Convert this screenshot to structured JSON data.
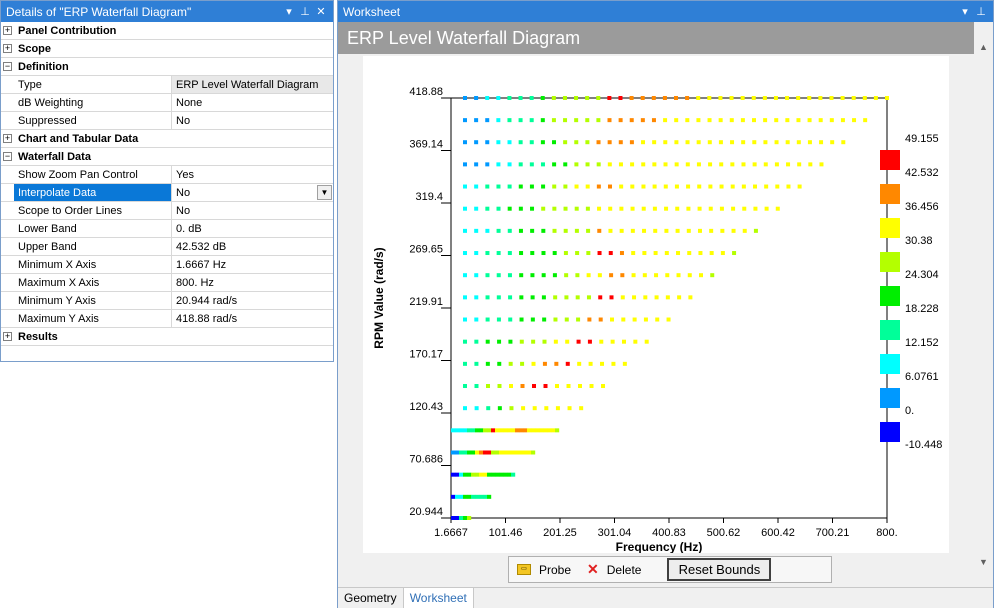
{
  "details": {
    "title": "Details of \"ERP Waterfall Diagram\"",
    "sections": [
      {
        "label": "Panel Contribution",
        "expanded": false,
        "rows": []
      },
      {
        "label": "Scope",
        "expanded": false,
        "rows": []
      },
      {
        "label": "Definition",
        "expanded": true,
        "rows": [
          {
            "name": "Type",
            "value": "ERP Level Waterfall Diagram",
            "readonly": true
          },
          {
            "name": "dB Weighting",
            "value": "None"
          },
          {
            "name": "Suppressed",
            "value": "No"
          }
        ]
      },
      {
        "label": "Chart and Tabular Data",
        "expanded": false,
        "rows": []
      },
      {
        "label": "Waterfall Data",
        "expanded": true,
        "rows": [
          {
            "name": "Show Zoom Pan Control",
            "value": "Yes"
          },
          {
            "name": "Interpolate Data",
            "value": "No",
            "selected": true,
            "dropdown": true
          },
          {
            "name": "Scope to Order Lines",
            "value": "No"
          },
          {
            "name": "Lower Band",
            "value": "0. dB"
          },
          {
            "name": "Upper Band",
            "value": "42.532 dB"
          },
          {
            "name": "Minimum X Axis",
            "value": "1.6667 Hz"
          },
          {
            "name": "Maximum X Axis",
            "value": "800. Hz"
          },
          {
            "name": "Minimum Y Axis",
            "value": "20.944 rad/s"
          },
          {
            "name": "Maximum Y Axis",
            "value": "418.88 rad/s"
          }
        ]
      },
      {
        "label": "Results",
        "expanded": false,
        "rows": []
      }
    ]
  },
  "worksheet": {
    "title": "Worksheet",
    "header": "ERP Level Waterfall Diagram",
    "toolbar": {
      "probe": "Probe",
      "delete": "Delete",
      "reset": "Reset Bounds"
    },
    "tabs": [
      "Geometry",
      "Worksheet"
    ],
    "active_tab": "Worksheet"
  },
  "chart_data": {
    "type": "heatmap",
    "xlabel": "Frequency (Hz)",
    "ylabel": "RPM Value (rad/s)",
    "xlim": [
      1.6667,
      800
    ],
    "ylim": [
      20.944,
      418.88
    ],
    "x_ticks": [
      "1.6667",
      "101.46",
      "201.25",
      "301.04",
      "400.83",
      "500.62",
      "600.42",
      "700.21",
      "800."
    ],
    "y_ticks": [
      "418.88",
      "369.14",
      "319.4",
      "269.65",
      "219.91",
      "170.17",
      "120.43",
      "70.686",
      "20.944"
    ],
    "legend": {
      "placement": "right",
      "values": [
        "49.155",
        "42.532",
        "36.456",
        "30.38",
        "24.304",
        "18.228",
        "12.152",
        "6.0761",
        "0.",
        "-10.448"
      ],
      "colors": [
        "#ff0000",
        "#ff8800",
        "#ffff00",
        "#b4ff00",
        "#00ee00",
        "#00ff99",
        "#00ffff",
        "#0099ff",
        "#0000ff"
      ]
    },
    "rows": [
      {
        "rpm": 418.88,
        "max_freq": 800,
        "profile": [
          [
            0,
            1
          ],
          [
            0.05,
            2
          ],
          [
            0.1,
            3
          ],
          [
            0.16,
            4
          ],
          [
            0.2,
            5
          ],
          [
            0.32,
            8
          ],
          [
            0.38,
            7
          ],
          [
            0.55,
            6
          ],
          [
            1,
            6
          ]
        ]
      },
      {
        "rpm": 397.9,
        "max_freq": 760,
        "profile": [
          [
            0,
            1
          ],
          [
            0.06,
            2
          ],
          [
            0.1,
            3
          ],
          [
            0.18,
            4
          ],
          [
            0.22,
            5
          ],
          [
            0.36,
            7
          ],
          [
            0.5,
            6
          ],
          [
            1,
            6
          ]
        ]
      },
      {
        "rpm": 377,
        "max_freq": 720,
        "profile": [
          [
            0,
            1
          ],
          [
            0.07,
            2
          ],
          [
            0.12,
            3
          ],
          [
            0.2,
            4
          ],
          [
            0.26,
            5
          ],
          [
            0.35,
            7
          ],
          [
            0.45,
            6
          ],
          [
            1,
            6
          ]
        ]
      },
      {
        "rpm": 356,
        "max_freq": 680,
        "profile": [
          [
            0,
            1
          ],
          [
            0.08,
            2
          ],
          [
            0.14,
            3
          ],
          [
            0.22,
            4
          ],
          [
            0.3,
            5
          ],
          [
            0.4,
            6
          ],
          [
            1,
            6
          ]
        ]
      },
      {
        "rpm": 335,
        "max_freq": 640,
        "profile": [
          [
            0,
            2
          ],
          [
            0.06,
            3
          ],
          [
            0.16,
            4
          ],
          [
            0.26,
            5
          ],
          [
            0.33,
            6
          ],
          [
            0.4,
            7
          ],
          [
            0.45,
            6
          ],
          [
            1,
            6
          ]
        ]
      },
      {
        "rpm": 314,
        "max_freq": 600,
        "profile": [
          [
            0,
            2
          ],
          [
            0.07,
            3
          ],
          [
            0.14,
            4
          ],
          [
            0.25,
            5
          ],
          [
            0.4,
            6
          ],
          [
            1,
            6
          ]
        ]
      },
      {
        "rpm": 293,
        "max_freq": 560,
        "profile": [
          [
            0,
            2
          ],
          [
            0.08,
            3
          ],
          [
            0.16,
            4
          ],
          [
            0.3,
            5
          ],
          [
            0.44,
            7
          ],
          [
            0.5,
            6
          ],
          [
            1,
            5
          ]
        ]
      },
      {
        "rpm": 272,
        "max_freq": 520,
        "profile": [
          [
            0,
            2
          ],
          [
            0.08,
            3
          ],
          [
            0.2,
            4
          ],
          [
            0.36,
            5
          ],
          [
            0.5,
            8
          ],
          [
            0.56,
            7
          ],
          [
            0.62,
            6
          ],
          [
            1,
            5
          ]
        ]
      },
      {
        "rpm": 251,
        "max_freq": 480,
        "profile": [
          [
            0,
            2
          ],
          [
            0.09,
            3
          ],
          [
            0.22,
            4
          ],
          [
            0.38,
            5
          ],
          [
            0.5,
            6
          ],
          [
            0.58,
            7
          ],
          [
            0.64,
            6
          ],
          [
            1,
            5
          ]
        ]
      },
      {
        "rpm": 230,
        "max_freq": 440,
        "profile": [
          [
            0,
            2
          ],
          [
            0.1,
            3
          ],
          [
            0.24,
            4
          ],
          [
            0.4,
            5
          ],
          [
            0.6,
            8
          ],
          [
            0.66,
            6
          ],
          [
            1,
            6
          ]
        ]
      },
      {
        "rpm": 209,
        "max_freq": 400,
        "profile": [
          [
            0,
            2
          ],
          [
            0.1,
            3
          ],
          [
            0.26,
            4
          ],
          [
            0.42,
            5
          ],
          [
            0.6,
            7
          ],
          [
            0.7,
            6
          ],
          [
            1,
            6
          ]
        ]
      },
      {
        "rpm": 188,
        "max_freq": 360,
        "profile": [
          [
            0,
            3
          ],
          [
            0.1,
            4
          ],
          [
            0.3,
            5
          ],
          [
            0.5,
            6
          ],
          [
            0.6,
            8
          ],
          [
            0.7,
            6
          ],
          [
            1,
            6
          ]
        ]
      },
      {
        "rpm": 167,
        "max_freq": 320,
        "profile": [
          [
            0,
            3
          ],
          [
            0.12,
            4
          ],
          [
            0.26,
            5
          ],
          [
            0.38,
            6
          ],
          [
            0.5,
            7
          ],
          [
            0.6,
            8
          ],
          [
            0.7,
            6
          ],
          [
            1,
            6
          ]
        ]
      },
      {
        "rpm": 146,
        "max_freq": 280,
        "profile": [
          [
            0,
            3
          ],
          [
            0.14,
            5
          ],
          [
            0.3,
            6
          ],
          [
            0.4,
            7
          ],
          [
            0.5,
            8
          ],
          [
            0.65,
            6
          ],
          [
            1,
            6
          ]
        ]
      },
      {
        "rpm": 125,
        "max_freq": 240,
        "profile": [
          [
            0,
            2
          ],
          [
            0.16,
            3
          ],
          [
            0.3,
            4
          ],
          [
            0.4,
            5
          ],
          [
            0.5,
            6
          ],
          [
            1,
            6
          ]
        ]
      },
      {
        "rpm": 104,
        "max_freq": 200,
        "profile": [
          [
            0,
            2
          ],
          [
            0.12,
            3
          ],
          [
            0.2,
            4
          ],
          [
            0.3,
            5
          ],
          [
            0.36,
            8
          ],
          [
            0.42,
            6
          ],
          [
            0.6,
            7
          ],
          [
            0.7,
            6
          ],
          [
            1,
            5
          ]
        ]
      },
      {
        "rpm": 83,
        "max_freq": 160,
        "profile": [
          [
            0,
            1
          ],
          [
            0.08,
            3
          ],
          [
            0.18,
            4
          ],
          [
            0.26,
            6
          ],
          [
            0.32,
            7
          ],
          [
            0.38,
            8
          ],
          [
            0.46,
            5
          ],
          [
            0.6,
            6
          ],
          [
            1,
            5
          ]
        ]
      },
      {
        "rpm": 62,
        "max_freq": 120,
        "profile": [
          [
            0,
            0
          ],
          [
            0.08,
            2
          ],
          [
            0.2,
            4
          ],
          [
            0.3,
            5
          ],
          [
            0.45,
            6
          ],
          [
            0.55,
            4
          ],
          [
            1,
            3
          ]
        ]
      },
      {
        "rpm": 41,
        "max_freq": 80,
        "profile": [
          [
            0,
            0
          ],
          [
            0.1,
            2
          ],
          [
            0.3,
            4
          ],
          [
            0.5,
            3
          ],
          [
            1,
            4
          ]
        ]
      },
      {
        "rpm": 20.944,
        "max_freq": 40,
        "profile": [
          [
            0,
            0
          ],
          [
            0.3,
            3
          ],
          [
            0.6,
            4
          ],
          [
            1,
            5
          ]
        ]
      }
    ]
  }
}
